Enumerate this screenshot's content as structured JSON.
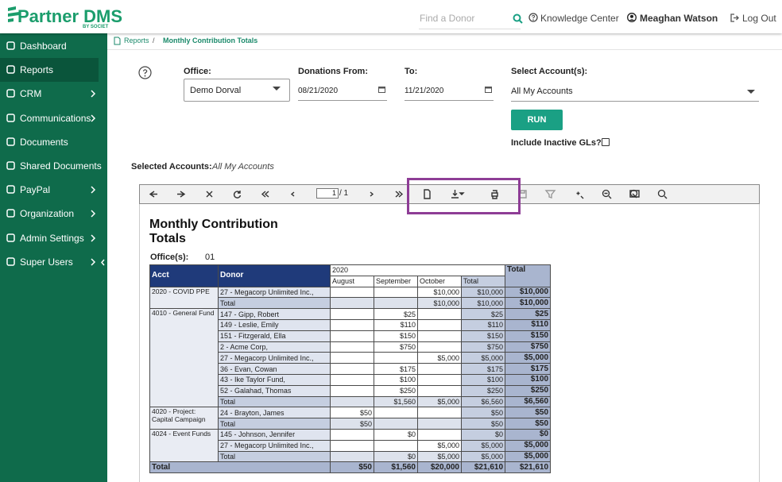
{
  "header": {
    "brand": "Partner DMS",
    "brand_sub": "BY SOCIET",
    "search_placeholder": "Find a Donor",
    "knowledge": "Knowledge Center",
    "user": "Meaghan Watson",
    "logout": "Log Out"
  },
  "sidebar": [
    {
      "label": "Dashboard",
      "submenu": false
    },
    {
      "label": "Reports",
      "submenu": false,
      "active": true
    },
    {
      "label": "CRM",
      "submenu": true
    },
    {
      "label": "Communications",
      "submenu": true
    },
    {
      "label": "Documents",
      "submenu": false
    },
    {
      "label": "Shared Documents",
      "submenu": false
    },
    {
      "label": "PayPal",
      "submenu": true
    },
    {
      "label": "Organization",
      "submenu": true
    },
    {
      "label": "Admin Settings",
      "submenu": true
    },
    {
      "label": "Super Users",
      "submenu": true
    }
  ],
  "breadcrumb": {
    "parent": "Reports",
    "separator": "/",
    "current": "Monthly Contribution Totals"
  },
  "form": {
    "office_label": "Office:",
    "office_value": "Demo Dorval",
    "from_label": "Donations From:",
    "from_value": "08/21/2020",
    "to_label": "To:",
    "to_value": "11/21/2020",
    "accounts_label": "Select Account(s):",
    "accounts_value": "All My Accounts",
    "run": "RUN",
    "inactive_label": "Include Inactive GLs?"
  },
  "selected": {
    "label": "Selected Accounts:",
    "value": "All My Accounts"
  },
  "toolbar": {
    "page": "1",
    "of": "/ 1"
  },
  "report": {
    "title": "Monthly Contribution Totals",
    "office_label": "Office(s):",
    "office_value": "01",
    "columns": [
      "Acct",
      "Donor",
      "2020",
      "August",
      "September",
      "October",
      "Total",
      "Total"
    ],
    "groups": [
      {
        "acct": "2020 - COVID PPE",
        "rows": [
          [
            "27 - Megacorp Unlimited Inc.,",
            null,
            null,
            "$10,000",
            "$10,000",
            "$10,000"
          ],
          [
            "Total",
            null,
            null,
            "$10,000",
            "$10,000",
            "$10,000"
          ]
        ]
      },
      {
        "acct": "4010 - General Fund",
        "rows": [
          [
            "147 - Gipp, Robert",
            null,
            "$25",
            null,
            "$25",
            "$25"
          ],
          [
            "149 - Leslie, Emily",
            null,
            "$110",
            null,
            "$110",
            "$110"
          ],
          [
            "151 - Fitzgerald, Ella",
            null,
            "$150",
            null,
            "$150",
            "$150"
          ],
          [
            "2 - Acme Corp,",
            null,
            "$750",
            null,
            "$750",
            "$750"
          ],
          [
            "27 - Megacorp Unlimited Inc.,",
            null,
            null,
            "$5,000",
            "$5,000",
            "$5,000"
          ],
          [
            "36 - Evan, Cowan",
            null,
            "$175",
            null,
            "$175",
            "$175"
          ],
          [
            "43 - Ike Taylor Fund,",
            null,
            "$100",
            null,
            "$100",
            "$100"
          ],
          [
            "52 - Galahad, Thomas",
            null,
            "$250",
            null,
            "$250",
            "$250"
          ],
          [
            "Total",
            null,
            "$1,560",
            "$5,000",
            "$6,560",
            "$6,560"
          ]
        ]
      },
      {
        "acct": "4020 - Project: Capital Campaign",
        "rows": [
          [
            "24 - Brayton, James",
            "$50",
            null,
            null,
            "$50",
            "$50"
          ],
          [
            "Total",
            "$50",
            null,
            null,
            "$50",
            "$50"
          ]
        ]
      },
      {
        "acct": "4024 - Event Funds",
        "rows": [
          [
            "145 - Johnson, Jennifer",
            null,
            "$0",
            null,
            "$0",
            "$0"
          ],
          [
            "27 - Megacorp Unlimited Inc.,",
            null,
            null,
            "$5,000",
            "$5,000",
            "$5,000"
          ],
          [
            "Total",
            null,
            "$0",
            "$5,000",
            "$5,000",
            "$5,000"
          ]
        ]
      }
    ],
    "grand_total": [
      "Total",
      "$50",
      "$1,560",
      "$20,000",
      "$21,610",
      "$21,610"
    ]
  }
}
